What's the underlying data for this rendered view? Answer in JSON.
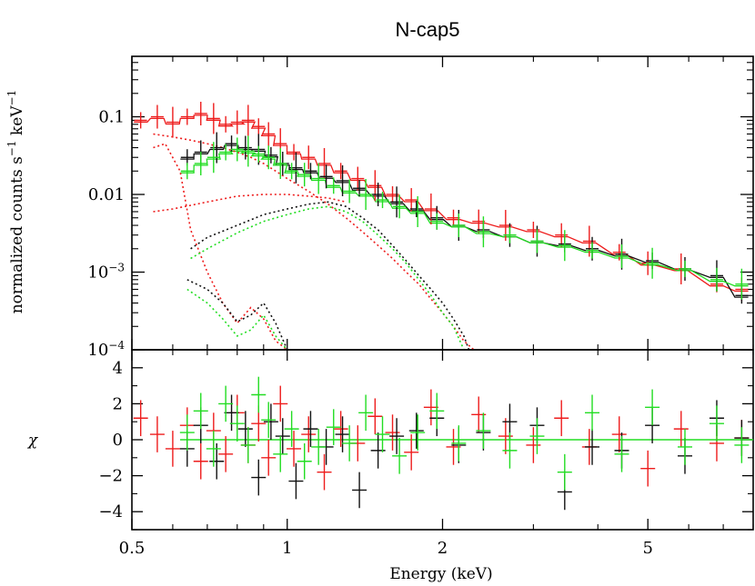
{
  "chart_data": [
    {
      "type": "line",
      "title": "N-cap5",
      "xlabel": "Energy (keV)",
      "ylabel_parts": [
        "normalized counts s",
        "−1",
        " keV",
        "−1"
      ],
      "xscale": "log",
      "yscale": "log",
      "xlim": [
        0.5,
        8.0
      ],
      "ylim": [
        0.0001,
        0.6
      ],
      "yticks": [
        {
          "value": 0.1,
          "label": "0.1"
        },
        {
          "value": 0.01,
          "label": "0.01"
        },
        {
          "value": 0.001,
          "label": "10",
          "exp": "−3"
        },
        {
          "value": 0.0001,
          "label": "10",
          "exp": "−4"
        }
      ],
      "series": [
        {
          "name": "data-red",
          "color": "#ee1c1c",
          "x": [
            0.52,
            0.56,
            0.6,
            0.64,
            0.68,
            0.72,
            0.76,
            0.8,
            0.84,
            0.88,
            0.92,
            0.97,
            1.03,
            1.1,
            1.18,
            1.27,
            1.37,
            1.48,
            1.6,
            1.74,
            1.9,
            2.1,
            2.35,
            2.65,
            3.0,
            3.4,
            3.85,
            4.4,
            5.0,
            5.8,
            6.8,
            7.6
          ],
          "y": [
            0.09,
            0.1,
            0.085,
            0.1,
            0.11,
            0.095,
            0.08,
            0.085,
            0.09,
            0.075,
            0.06,
            0.045,
            0.035,
            0.03,
            0.025,
            0.02,
            0.016,
            0.013,
            0.01,
            0.0085,
            0.0065,
            0.005,
            0.0045,
            0.004,
            0.0035,
            0.003,
            0.0025,
            0.0018,
            0.0013,
            0.0011,
            0.0007,
            0.0006
          ]
        },
        {
          "name": "data-black",
          "color": "#111111",
          "x": [
            0.64,
            0.68,
            0.73,
            0.78,
            0.83,
            0.88,
            0.93,
            0.98,
            1.04,
            1.11,
            1.19,
            1.28,
            1.38,
            1.5,
            1.63,
            1.78,
            1.95,
            2.15,
            2.4,
            2.7,
            3.05,
            3.45,
            3.9,
            4.45,
            5.1,
            5.9,
            6.8,
            7.6
          ],
          "y": [
            0.03,
            0.035,
            0.04,
            0.045,
            0.04,
            0.038,
            0.032,
            0.025,
            0.022,
            0.02,
            0.017,
            0.015,
            0.012,
            0.01,
            0.008,
            0.0065,
            0.005,
            0.004,
            0.0035,
            0.003,
            0.0025,
            0.0023,
            0.002,
            0.0017,
            0.0014,
            0.0011,
            0.0009,
            0.0005
          ]
        },
        {
          "name": "data-green",
          "color": "#22dd22",
          "x": [
            0.64,
            0.68,
            0.72,
            0.76,
            0.8,
            0.84,
            0.88,
            0.92,
            0.97,
            1.02,
            1.08,
            1.15,
            1.23,
            1.32,
            1.42,
            1.53,
            1.65,
            1.79,
            1.95,
            2.15,
            2.4,
            2.7,
            3.05,
            3.45,
            3.9,
            4.45,
            5.1,
            5.9,
            6.8,
            7.6
          ],
          "y": [
            0.02,
            0.025,
            0.03,
            0.035,
            0.038,
            0.036,
            0.033,
            0.03,
            0.025,
            0.02,
            0.018,
            0.016,
            0.013,
            0.011,
            0.01,
            0.0085,
            0.007,
            0.006,
            0.0045,
            0.004,
            0.0033,
            0.003,
            0.0025,
            0.0022,
            0.0019,
            0.0016,
            0.0013,
            0.0011,
            0.0008,
            0.0007
          ]
        },
        {
          "name": "model-red-soft",
          "color": "#ee1c1c",
          "style": "dotted",
          "x": [
            0.55,
            0.6,
            0.65,
            0.7,
            0.75,
            0.8,
            0.85,
            0.9,
            0.95,
            1.0,
            1.1,
            1.2,
            1.3,
            1.4,
            1.5,
            1.6,
            1.7,
            1.8,
            1.9,
            2.0,
            2.1,
            2.2,
            2.3
          ],
          "y": [
            0.06,
            0.055,
            0.05,
            0.045,
            0.04,
            0.035,
            0.03,
            0.025,
            0.02,
            0.016,
            0.011,
            0.0075,
            0.005,
            0.0033,
            0.0022,
            0.0015,
            0.001,
            0.0007,
            0.00045,
            0.0003,
            0.0002,
            0.00013,
            0.0001
          ]
        },
        {
          "name": "model-red-apec",
          "color": "#ee1c1c",
          "style": "dotted",
          "x": [
            0.55,
            0.58,
            0.62,
            0.65,
            0.7,
            0.75,
            0.8,
            0.85,
            0.9,
            0.95,
            1.0
          ],
          "y": [
            0.04,
            0.045,
            0.02,
            0.0035,
            0.001,
            0.0004,
            0.00022,
            0.00035,
            0.00025,
            0.00013,
            0.0001
          ]
        },
        {
          "name": "model-red-hard",
          "color": "#ee1c1c",
          "style": "dotted",
          "x": [
            0.55,
            0.6,
            0.7,
            0.8,
            0.9,
            1.0,
            1.1,
            1.2,
            1.3
          ],
          "y": [
            0.006,
            0.0065,
            0.008,
            0.0095,
            0.01,
            0.01,
            0.0095,
            0.009,
            0.008
          ]
        },
        {
          "name": "model-black-soft",
          "color": "#111111",
          "style": "dotted",
          "x": [
            0.65,
            0.7,
            0.8,
            0.9,
            1.0,
            1.1,
            1.2,
            1.3,
            1.4,
            1.5,
            1.6,
            1.7,
            1.8,
            1.9,
            2.0,
            2.1,
            2.2,
            2.25
          ],
          "y": [
            0.002,
            0.0028,
            0.004,
            0.0055,
            0.0065,
            0.0075,
            0.008,
            0.007,
            0.005,
            0.0035,
            0.0022,
            0.0014,
            0.0009,
            0.0006,
            0.0004,
            0.00025,
            0.00015,
            0.0001
          ]
        },
        {
          "name": "model-black-apec",
          "color": "#111111",
          "style": "dotted",
          "x": [
            0.64,
            0.7,
            0.75,
            0.8,
            0.85,
            0.9,
            0.95,
            1.0
          ],
          "y": [
            0.0008,
            0.0006,
            0.0004,
            0.00023,
            0.00028,
            0.0004,
            0.00022,
            0.0001
          ]
        },
        {
          "name": "model-green-soft",
          "color": "#22dd22",
          "style": "dotted",
          "x": [
            0.65,
            0.7,
            0.8,
            0.9,
            1.0,
            1.1,
            1.2,
            1.3,
            1.4,
            1.5,
            1.6,
            1.7,
            1.8,
            1.9,
            2.0,
            2.1,
            2.2
          ],
          "y": [
            0.0015,
            0.002,
            0.0032,
            0.0045,
            0.0055,
            0.0065,
            0.007,
            0.006,
            0.0045,
            0.003,
            0.002,
            0.0013,
            0.0008,
            0.0005,
            0.0003,
            0.0002,
            0.0001
          ]
        },
        {
          "name": "model-green-apec",
          "color": "#22dd22",
          "style": "dotted",
          "x": [
            0.64,
            0.7,
            0.75,
            0.8,
            0.85,
            0.9,
            0.95,
            1.0
          ],
          "y": [
            0.0006,
            0.0004,
            0.00025,
            0.00015,
            0.00018,
            0.00028,
            0.00015,
            0.0001
          ]
        }
      ]
    },
    {
      "type": "scatter",
      "ylabel": "χ",
      "xlabel": "Energy (keV)",
      "xscale": "log",
      "xlim": [
        0.5,
        8.0
      ],
      "ylim": [
        -5,
        5
      ],
      "yticks": [
        {
          "value": 4,
          "label": "4"
        },
        {
          "value": 2,
          "label": "2"
        },
        {
          "value": 0,
          "label": "0"
        },
        {
          "value": -2,
          "label": "−2"
        },
        {
          "value": -4,
          "label": "−4"
        }
      ],
      "xticks": [
        {
          "value": 0.5,
          "label": "0.5"
        },
        {
          "value": 1,
          "label": "1"
        },
        {
          "value": 2,
          "label": "2"
        },
        {
          "value": 5,
          "label": "5"
        }
      ],
      "series": [
        {
          "name": "resid-red",
          "color": "#ee1c1c",
          "x": [
            0.52,
            0.56,
            0.6,
            0.64,
            0.68,
            0.72,
            0.76,
            0.8,
            0.84,
            0.88,
            0.92,
            0.97,
            1.03,
            1.1,
            1.18,
            1.27,
            1.37,
            1.48,
            1.6,
            1.74,
            1.9,
            2.1,
            2.35,
            2.65,
            3.0,
            3.4,
            3.85,
            4.4,
            5.0,
            5.8,
            6.8,
            7.6
          ],
          "y": [
            1.2,
            0.3,
            -0.5,
            0.8,
            -1.2,
            0.5,
            -0.8,
            1.5,
            -0.3,
            0.9,
            -1.0,
            2.0,
            -0.5,
            0.3,
            -1.8,
            0.6,
            -0.2,
            1.3,
            0.4,
            -0.7,
            1.8,
            -0.4,
            1.4,
            0.2,
            -0.3,
            1.2,
            -0.4,
            0.3,
            -1.6,
            0.6,
            -0.2,
            0.1
          ]
        },
        {
          "name": "resid-black",
          "color": "#111111",
          "x": [
            0.64,
            0.68,
            0.73,
            0.78,
            0.83,
            0.88,
            0.93,
            0.98,
            1.04,
            1.11,
            1.19,
            1.28,
            1.38,
            1.5,
            1.63,
            1.78,
            1.95,
            2.15,
            2.4,
            2.7,
            3.05,
            3.45,
            3.9,
            4.45,
            5.1,
            5.9,
            6.8,
            7.6
          ],
          "y": [
            -0.5,
            0.8,
            -1.2,
            1.5,
            0.6,
            -2.1,
            1.0,
            0.2,
            -2.3,
            0.6,
            -0.4,
            0.3,
            -2.8,
            -0.6,
            0.2,
            0.5,
            1.2,
            -0.3,
            0.4,
            1.0,
            0.8,
            -2.9,
            -0.4,
            -0.6,
            0.8,
            -0.9,
            1.2,
            0.1
          ]
        },
        {
          "name": "resid-green",
          "color": "#22dd22",
          "x": [
            0.64,
            0.68,
            0.72,
            0.76,
            0.8,
            0.84,
            0.88,
            0.92,
            0.97,
            1.02,
            1.08,
            1.15,
            1.23,
            1.32,
            1.42,
            1.53,
            1.65,
            1.79,
            1.95,
            2.15,
            2.4,
            2.7,
            3.05,
            3.45,
            3.9,
            4.45,
            5.1,
            5.9,
            6.8,
            7.6
          ],
          "y": [
            0.4,
            1.6,
            -0.5,
            2.0,
            0.9,
            -0.3,
            2.5,
            1.1,
            -0.8,
            0.6,
            -1.2,
            -0.4,
            0.7,
            -0.2,
            1.5,
            0.3,
            -0.9,
            0.4,
            1.6,
            -0.2,
            0.5,
            -0.6,
            0.2,
            -1.8,
            1.5,
            -0.8,
            1.8,
            -0.4,
            0.9,
            -0.3
          ]
        }
      ]
    }
  ]
}
